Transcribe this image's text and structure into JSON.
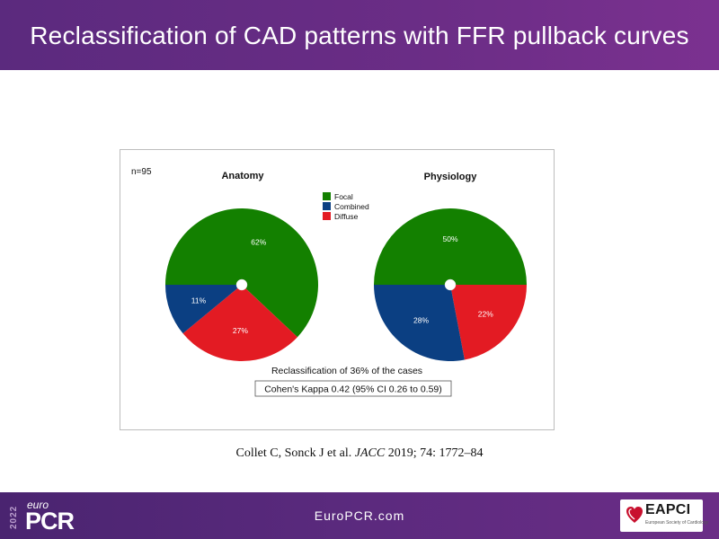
{
  "header": {
    "title": "Reclassification of CAD patterns with FFR pullback curves"
  },
  "chart_data": {
    "type": "pie",
    "sample_label": "n=95",
    "legend": {
      "placement": "top-center",
      "entries": [
        {
          "label": "Focal",
          "color": "#138000"
        },
        {
          "label": "Combined",
          "color": "#0b3f82"
        },
        {
          "label": "Diffuse",
          "color": "#e31b23"
        }
      ]
    },
    "pies": [
      {
        "title": "Anatomy",
        "slices": [
          {
            "label": "Focal",
            "value": 62,
            "display": "62%"
          },
          {
            "label": "Diffuse",
            "value": 27,
            "display": "27%"
          },
          {
            "label": "Combined",
            "value": 11,
            "display": "11%"
          }
        ]
      },
      {
        "title": "Physiology",
        "slices": [
          {
            "label": "Focal",
            "value": 50,
            "display": "50%"
          },
          {
            "label": "Diffuse",
            "value": 22,
            "display": "22%"
          },
          {
            "label": "Combined",
            "value": 28,
            "display": "28%"
          }
        ]
      }
    ],
    "annotation": "Reclassification of 36% of the cases",
    "boxed_annotation": "Cohen's Kappa 0.42 (95% CI 0.26 to 0.59)"
  },
  "citation": {
    "authors": "Collet C, Sonck J et al.",
    "journal": "JACC",
    "details": "2019;  74:  1772–84"
  },
  "footer": {
    "site": "EuroPCR.com",
    "brand_year": "2022",
    "brand_small": "euro",
    "brand_big": "PCR",
    "partner_name": "EAPCI",
    "partner_sub": "European Society of Cardiology"
  },
  "colors": {
    "focal": "#138000",
    "combined": "#0b3f82",
    "diffuse": "#e31b23",
    "header": "#6b2d86"
  }
}
